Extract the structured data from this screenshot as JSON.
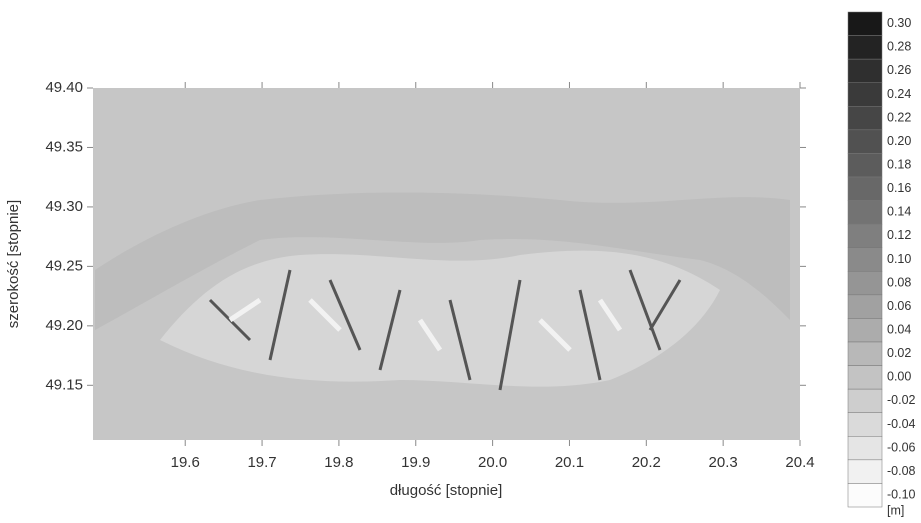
{
  "chart_data": {
    "type": "heatmap",
    "x_label": "długość  [stopnie]",
    "y_label": "szerokość [stopnie]",
    "xlim": [
      19.48,
      20.4
    ],
    "ylim": [
      49.104,
      49.4
    ],
    "xticks": [
      19.6,
      19.7,
      19.8,
      19.9,
      {
        "value": 20,
        "label": "20.0"
      },
      20.1,
      20.2,
      20.3,
      20.4
    ],
    "yticks": [
      49.15,
      {
        "value": 49.2,
        "label": "49.20"
      },
      49.25,
      {
        "value": 49.3,
        "label": "49.30"
      },
      49.35,
      {
        "value": 49.4,
        "label": "49.40"
      }
    ],
    "colorbar": {
      "unit": "[m]",
      "ticks": [
        {
          "value": 0.3,
          "label": "0.30"
        },
        0.28,
        0.26,
        0.24,
        0.22,
        {
          "value": 0.2,
          "label": "0.20"
        },
        0.18,
        0.16,
        0.14,
        0.12,
        {
          "value": 0.1,
          "label": "0.10"
        },
        0.08,
        0.06,
        0.04,
        0.02,
        {
          "value": 0,
          "label": "0.00"
        },
        -0.02,
        -0.04,
        -0.06,
        -0.08,
        {
          "value": -0.1,
          "label": "-0.10"
        }
      ]
    }
  }
}
